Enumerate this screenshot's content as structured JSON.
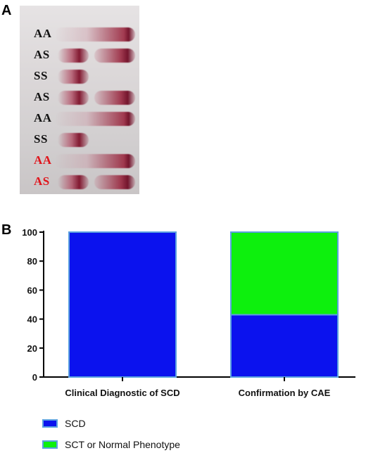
{
  "panel_a": {
    "label": "A",
    "lanes": [
      {
        "label": "AA",
        "color": "#111111",
        "bands": [
          "A"
        ]
      },
      {
        "label": "AS",
        "color": "#111111",
        "bands": [
          "S",
          "A"
        ]
      },
      {
        "label": "SS",
        "color": "#111111",
        "bands": [
          "S"
        ]
      },
      {
        "label": "AS",
        "color": "#111111",
        "bands": [
          "S",
          "A"
        ]
      },
      {
        "label": "AA",
        "color": "#111111",
        "bands": [
          "A"
        ]
      },
      {
        "label": "SS",
        "color": "#111111",
        "bands": [
          "S"
        ]
      },
      {
        "label": "AA",
        "color": "#e0141b",
        "bands": [
          "A"
        ]
      },
      {
        "label": "AS",
        "color": "#e0141b",
        "bands": [
          "S",
          "A"
        ]
      }
    ]
  },
  "panel_b": {
    "label": "B"
  },
  "chart_data": {
    "type": "bar",
    "stacked": true,
    "categories": [
      "Clinical Diagnostic of SCD",
      "Confirmation by CAE"
    ],
    "series": [
      {
        "name": "SCD",
        "values": [
          100,
          43
        ],
        "color": "#0b12ee"
      },
      {
        "name": "SCT or Normal Phenotype",
        "values": [
          0,
          57
        ],
        "color": "#0df00d"
      }
    ],
    "ylim": [
      0,
      100
    ],
    "yticks": [
      0,
      20,
      40,
      60,
      80,
      100
    ],
    "title": "",
    "xlabel": "",
    "ylabel": "",
    "legend_position": "bottom-left",
    "bar_edge_color": "#5aa0e0"
  }
}
